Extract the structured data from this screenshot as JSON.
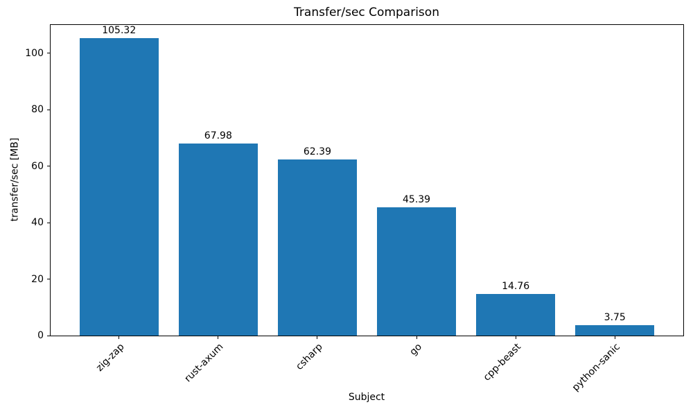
{
  "chart_data": {
    "type": "bar",
    "title": "Transfer/sec Comparison",
    "xlabel": "Subject",
    "ylabel": "transfer/sec [MB]",
    "categories": [
      "zig-zap",
      "rust-axum",
      "csharp",
      "go",
      "cpp-beast",
      "python-sanic"
    ],
    "values": [
      105.32,
      67.98,
      62.39,
      45.39,
      14.76,
      3.75
    ],
    "bar_labels": [
      "105.32",
      "67.98",
      "62.39",
      "45.39",
      "14.76",
      "3.75"
    ],
    "bar_color": "#1f77b4",
    "yticks": [
      0,
      20,
      40,
      60,
      80,
      100
    ],
    "ylim": [
      0,
      110
    ],
    "xlim": [
      -0.69,
      5.69
    ],
    "bar_width_units": 0.8,
    "x_tick_rotation_deg": 45,
    "grid": false,
    "legend": "none",
    "axis_color": "#000000",
    "text_color": "#000000"
  }
}
